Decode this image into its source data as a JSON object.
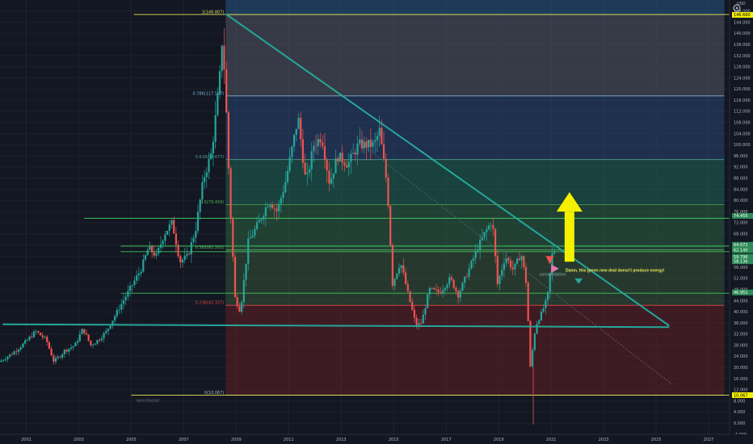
{
  "header": {
    "currency": "USD",
    "settings_icon": "gear-icon"
  },
  "chart_data": {
    "type": "candlestick",
    "ylim": [
      -4,
      152
    ],
    "xlim": [
      2000.0,
      2027.8
    ],
    "y_ticks": [
      "-4.000",
      "0.000",
      "4.000",
      "8.000",
      "12.000",
      "16.000",
      "20.000",
      "24.000",
      "28.000",
      "32.000",
      "36.000",
      "40.000",
      "44.000",
      "48.000",
      "52.000",
      "56.000",
      "60.000",
      "64.000",
      "68.000",
      "72.000",
      "76.000",
      "80.000",
      "84.000",
      "88.000",
      "92.000",
      "96.000",
      "100.000",
      "104.000",
      "108.000",
      "112.000",
      "116.000",
      "120.000",
      "124.000",
      "128.000",
      "132.000",
      "136.000",
      "140.000",
      "144.000",
      "148.000"
    ],
    "x_ticks": [
      "2001",
      "2003",
      "2005",
      "2007",
      "2009",
      "2011",
      "2013",
      "2015",
      "2017",
      "2019",
      "2021",
      "2023",
      "2025",
      "2027"
    ],
    "price_path": [
      [
        2000.0,
        22
      ],
      [
        2000.5,
        25
      ],
      [
        2001.0,
        29
      ],
      [
        2001.4,
        33
      ],
      [
        2001.8,
        30
      ],
      [
        2002.1,
        22
      ],
      [
        2002.5,
        26
      ],
      [
        2002.9,
        28
      ],
      [
        2003.2,
        34
      ],
      [
        2003.5,
        28
      ],
      [
        2003.8,
        30
      ],
      [
        2004.1,
        33
      ],
      [
        2004.5,
        40
      ],
      [
        2004.8,
        45
      ],
      [
        2005.1,
        50
      ],
      [
        2005.4,
        55
      ],
      [
        2005.7,
        63
      ],
      [
        2006.0,
        60
      ],
      [
        2006.3,
        68
      ],
      [
        2006.6,
        72
      ],
      [
        2006.9,
        58
      ],
      [
        2007.2,
        60
      ],
      [
        2007.5,
        70
      ],
      [
        2007.8,
        88
      ],
      [
        2008.1,
        97
      ],
      [
        2008.4,
        122
      ],
      [
        2008.52,
        140
      ],
      [
        2008.65,
        115
      ],
      [
        2008.8,
        80
      ],
      [
        2009.0,
        45
      ],
      [
        2009.2,
        40
      ],
      [
        2009.5,
        65
      ],
      [
        2009.9,
        72
      ],
      [
        2010.3,
        80
      ],
      [
        2010.6,
        76
      ],
      [
        2010.9,
        86
      ],
      [
        2011.2,
        100
      ],
      [
        2011.4,
        110
      ],
      [
        2011.7,
        86
      ],
      [
        2012.0,
        100
      ],
      [
        2012.3,
        103
      ],
      [
        2012.6,
        86
      ],
      [
        2012.9,
        96
      ],
      [
        2013.3,
        93
      ],
      [
        2013.7,
        100
      ],
      [
        2014.0,
        100
      ],
      [
        2014.3,
        100
      ],
      [
        2014.5,
        105
      ],
      [
        2014.8,
        85
      ],
      [
        2015.0,
        50
      ],
      [
        2015.3,
        58
      ],
      [
        2015.6,
        46
      ],
      [
        2015.9,
        35
      ],
      [
        2016.1,
        36
      ],
      [
        2016.4,
        48
      ],
      [
        2016.8,
        47
      ],
      [
        2017.2,
        52
      ],
      [
        2017.5,
        46
      ],
      [
        2017.9,
        55
      ],
      [
        2018.2,
        62
      ],
      [
        2018.5,
        68
      ],
      [
        2018.8,
        73
      ],
      [
        2019.0,
        50
      ],
      [
        2019.3,
        60
      ],
      [
        2019.6,
        55
      ],
      [
        2019.9,
        61
      ],
      [
        2020.1,
        50
      ],
      [
        2020.25,
        20
      ],
      [
        2020.45,
        35
      ],
      [
        2020.7,
        40
      ],
      [
        2020.9,
        45
      ],
      [
        2021.1,
        62
      ]
    ],
    "channel_top": [
      [
        2008.6,
        147
      ],
      [
        2025.5,
        35
      ]
    ],
    "support": [
      [
        2000.1,
        35.5
      ],
      [
        2025.5,
        34.5
      ]
    ],
    "box_range": [
      2008.6,
      2027.6
    ],
    "fib_levels": [
      {
        "label": "1(146.807)",
        "value": 146.807
      },
      {
        "label": "0.786(117.547)",
        "value": 117.547
      },
      {
        "label": "0.618(94.677)",
        "value": 94.677
      },
      {
        "label": "0.5(78.456)",
        "value": 78.456
      },
      {
        "label": "0.382(62.201)",
        "value": 62.201
      },
      {
        "label": "0.236(42.337)",
        "value": 42.337
      },
      {
        "label": "0(10.067)",
        "value": 10.067
      }
    ],
    "h_lines": [
      73.6,
      63.6,
      61.6,
      46.7
    ],
    "price_labels": [
      {
        "text": "146.660",
        "value": 146.66,
        "style": "yellow"
      },
      {
        "text": "74.455",
        "value": 74.455,
        "style": "green"
      },
      {
        "text": "64.072",
        "value": 64.072,
        "style": "green"
      },
      {
        "text": "62.140",
        "value": 62.14,
        "style": "green"
      },
      {
        "text": "59.796",
        "value": 59.796,
        "style": "green"
      },
      {
        "text": "58.136",
        "value": 58.136,
        "style": "green"
      },
      {
        "text": "46.951",
        "value": 46.951,
        "style": "green"
      },
      {
        "text": "10.067",
        "value": 10.067,
        "style": "yellow"
      }
    ],
    "annotations": {
      "note": "Damn, this green new deal doesn't produce energy!",
      "consolidation_label": "consolidation",
      "small_label": "apocalypse"
    }
  }
}
